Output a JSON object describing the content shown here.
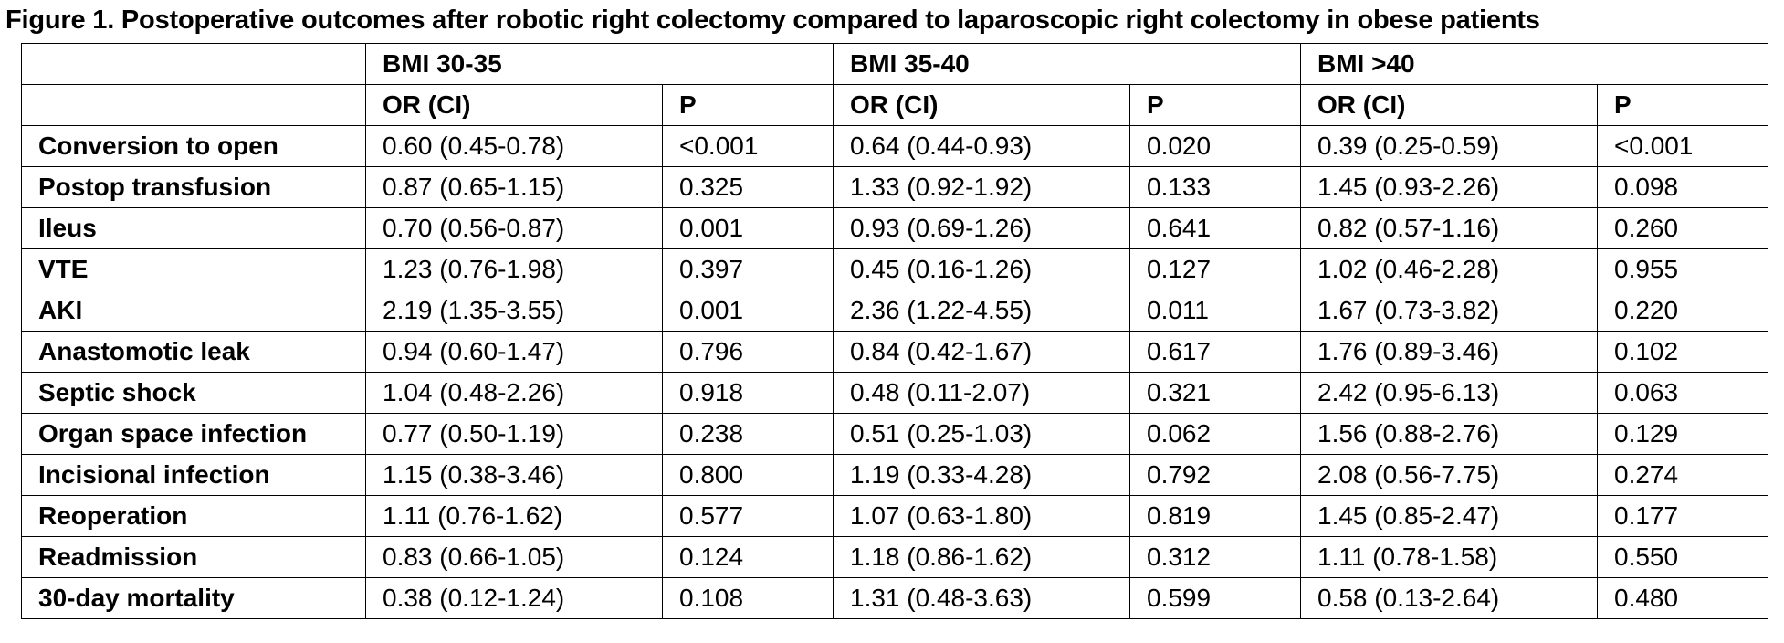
{
  "title": "Figure 1. Postoperative outcomes after robotic right colectomy compared to laparoscopic right colectomy in obese patients",
  "groups": [
    "BMI 30-35",
    "BMI 35-40",
    "BMI >40"
  ],
  "subheaders": {
    "or": "OR (CI)",
    "p": "P"
  },
  "rows": [
    {
      "label": "Conversion to open",
      "cells": [
        "0.60 (0.45-0.78)",
        "<0.001",
        "0.64 (0.44-0.93)",
        "0.020",
        "0.39 (0.25-0.59)",
        "<0.001"
      ]
    },
    {
      "label": "Postop transfusion",
      "cells": [
        "0.87 (0.65-1.15)",
        "0.325",
        "1.33 (0.92-1.92)",
        "0.133",
        "1.45 (0.93-2.26)",
        "0.098"
      ]
    },
    {
      "label": "Ileus",
      "cells": [
        "0.70 (0.56-0.87)",
        "0.001",
        "0.93 (0.69-1.26)",
        "0.641",
        "0.82 (0.57-1.16)",
        "0.260"
      ]
    },
    {
      "label": "VTE",
      "cells": [
        "1.23 (0.76-1.98)",
        "0.397",
        "0.45 (0.16-1.26)",
        "0.127",
        "1.02 (0.46-2.28)",
        "0.955"
      ]
    },
    {
      "label": "AKI",
      "cells": [
        "2.19 (1.35-3.55)",
        "0.001",
        "2.36 (1.22-4.55)",
        "0.011",
        "1.67 (0.73-3.82)",
        "0.220"
      ]
    },
    {
      "label": "Anastomotic leak",
      "cells": [
        "0.94 (0.60-1.47)",
        "0.796",
        "0.84 (0.42-1.67)",
        "0.617",
        "1.76 (0.89-3.46)",
        "0.102"
      ]
    },
    {
      "label": "Septic shock",
      "cells": [
        "1.04 (0.48-2.26)",
        "0.918",
        "0.48 (0.11-2.07)",
        "0.321",
        "2.42 (0.95-6.13)",
        "0.063"
      ]
    },
    {
      "label": "Organ space infection",
      "cells": [
        "0.77 (0.50-1.19)",
        "0.238",
        "0.51 (0.25-1.03)",
        "0.062",
        "1.56 (0.88-2.76)",
        "0.129"
      ]
    },
    {
      "label": "Incisional infection",
      "cells": [
        "1.15 (0.38-3.46)",
        "0.800",
        "1.19 (0.33-4.28)",
        "0.792",
        "2.08 (0.56-7.75)",
        "0.274"
      ]
    },
    {
      "label": "Reoperation",
      "cells": [
        "1.11 (0.76-1.62)",
        "0.577",
        "1.07 (0.63-1.80)",
        "0.819",
        "1.45 (0.85-2.47)",
        "0.177"
      ]
    },
    {
      "label": "Readmission",
      "cells": [
        "0.83 (0.66-1.05)",
        "0.124",
        "1.18 (0.86-1.62)",
        "0.312",
        "1.11 (0.78-1.58)",
        "0.550"
      ]
    },
    {
      "label": "30-day mortality",
      "cells": [
        "0.38 (0.12-1.24)",
        "0.108",
        "1.31 (0.48-3.63)",
        "0.599",
        "0.58 (0.13-2.64)",
        "0.480"
      ]
    }
  ]
}
